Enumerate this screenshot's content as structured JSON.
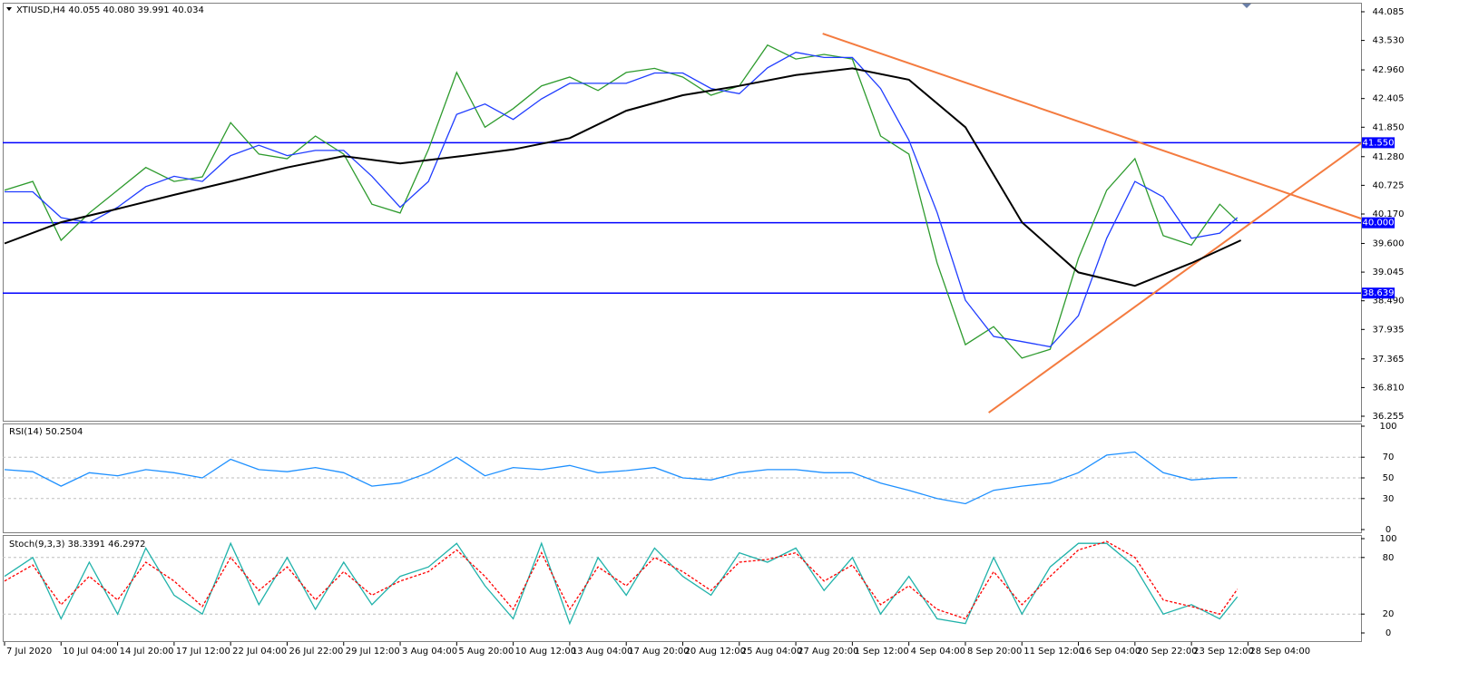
{
  "chart_data": [
    {
      "type": "line",
      "title": "XTIUSD,H4  40.055 40.080 39.991 40.034",
      "xlim": [
        0,
        384
      ],
      "ylim": [
        36.185,
        44.225
      ],
      "yticks": [
        36.255,
        {
          "value": 36.81,
          "label": "36.810"
        },
        37.365,
        37.935,
        {
          "value": 38.49,
          "label": "38.490"
        },
        39.045,
        {
          "value": 39.6,
          "label": "39.600"
        },
        {
          "value": 40.17,
          "label": "40.170"
        },
        40.725,
        {
          "value": 41.28,
          "label": "41.280"
        },
        {
          "value": 41.85,
          "label": "41.850"
        },
        42.405,
        {
          "value": 42.96,
          "label": "42.960"
        },
        {
          "value": 43.53,
          "label": "43.530"
        },
        44.085
      ],
      "x": [
        0,
        8,
        16,
        24,
        32,
        40,
        48,
        56,
        64,
        72,
        80,
        88,
        96,
        104,
        112,
        120,
        128,
        136,
        144,
        152,
        160,
        168,
        176,
        184,
        192,
        200,
        208,
        216,
        224,
        232,
        240,
        248,
        256,
        264,
        272,
        280,
        288,
        296,
        304,
        312,
        320,
        328,
        336,
        344,
        349
      ],
      "series": [
        {
          "color": "#2e9b2e",
          "values": [
            40.63,
            40.8,
            39.66,
            40.19,
            40.63,
            41.07,
            40.8,
            40.89,
            41.94,
            41.33,
            41.24,
            41.68,
            41.33,
            40.36,
            40.19,
            41.42,
            42.91,
            41.85,
            42.21,
            42.65,
            42.82,
            42.56,
            42.91,
            42.99,
            42.82,
            42.47,
            42.65,
            43.44,
            43.17,
            43.26,
            43.17,
            41.68,
            41.33,
            39.22,
            37.64,
            37.99,
            37.38,
            37.55,
            39.31,
            40.63,
            41.24,
            39.75,
            39.57,
            40.36,
            40.034
          ]
        },
        {
          "color": "#1f3cff",
          "values": [
            40.6,
            40.6,
            40.1,
            40.0,
            40.3,
            40.7,
            40.9,
            40.8,
            41.3,
            41.5,
            41.3,
            41.4,
            41.4,
            40.9,
            40.3,
            40.8,
            42.1,
            42.3,
            42.0,
            42.4,
            42.7,
            42.7,
            42.7,
            42.9,
            42.9,
            42.6,
            42.5,
            43.0,
            43.3,
            43.2,
            43.2,
            42.6,
            41.6,
            40.2,
            38.5,
            37.8,
            37.7,
            37.6,
            38.2,
            39.7,
            40.8,
            40.5,
            39.7,
            39.8,
            40.1
          ]
        },
        {
          "color": "#000000",
          "x": [
            0,
            16,
            32,
            48,
            64,
            80,
            96,
            112,
            128,
            144,
            160,
            176,
            192,
            208,
            224,
            240,
            256,
            272,
            288,
            304,
            320,
            336,
            350
          ],
          "values": [
            39.6,
            40.01,
            40.27,
            40.54,
            40.8,
            41.07,
            41.29,
            41.15,
            41.28,
            41.42,
            41.64,
            42.17,
            42.47,
            42.65,
            42.86,
            42.99,
            42.77,
            41.85,
            40.01,
            39.04,
            38.78,
            39.22,
            39.66
          ]
        }
      ],
      "levels": [
        {
          "value": 41.55,
          "label": "41.550"
        },
        {
          "value": 40,
          "label": "40.000"
        },
        38.639
      ],
      "level_color": "#0000ff",
      "trendlines": [
        {
          "x": [
            231.6,
            384
          ],
          "y": [
            43.663,
            40.082
          ]
        },
        {
          "x": [
            278.6,
            384
          ],
          "y": [
            36.325,
            41.539
          ]
        }
      ],
      "trendline_color": "#f47b3f"
    },
    {
      "type": "line",
      "title": "RSI(14) 50.2504",
      "xlim": [
        0,
        384
      ],
      "ylim": [
        0,
        100
      ],
      "yticks": [
        0,
        30,
        50,
        70,
        100
      ],
      "levels": [
        30,
        50,
        70
      ],
      "level_color": "#bdbdbd",
      "level_dash": true,
      "x": [
        0,
        8,
        16,
        24,
        32,
        40,
        48,
        56,
        64,
        72,
        80,
        88,
        96,
        104,
        112,
        120,
        128,
        136,
        144,
        152,
        160,
        168,
        176,
        184,
        192,
        200,
        208,
        216,
        224,
        232,
        240,
        248,
        256,
        264,
        272,
        280,
        288,
        296,
        304,
        312,
        320,
        328,
        336,
        344,
        349
      ],
      "series": [
        {
          "color": "#1e90ff",
          "values": [
            58,
            56,
            42,
            55,
            52,
            58,
            55,
            50,
            68,
            58,
            56,
            60,
            55,
            42,
            45,
            55,
            70,
            52,
            60,
            58,
            62,
            55,
            57,
            60,
            50,
            48,
            55,
            58,
            58,
            55,
            55,
            45,
            38,
            30,
            25,
            38,
            42,
            45,
            55,
            72,
            75,
            55,
            48,
            50,
            50.25
          ]
        }
      ]
    },
    {
      "type": "line",
      "title": "Stoch(9,3,3) 38.3391 46.2972",
      "xlim": [
        0,
        384
      ],
      "ylim": [
        0,
        100
      ],
      "yticks": [
        0,
        20,
        80,
        100
      ],
      "levels": [
        20,
        80
      ],
      "level_color": "#bdbdbd",
      "level_dash": true,
      "xticks": [
        {
          "value": 0,
          "label": "7 Jul 2020"
        },
        {
          "value": 16,
          "label": "10 Jul 04:00"
        },
        {
          "value": 32,
          "label": "14 Jul 20:00"
        },
        {
          "value": 48,
          "label": "17 Jul 12:00"
        },
        {
          "value": 64,
          "label": "22 Jul 04:00"
        },
        {
          "value": 80,
          "label": "26 Jul 22:00"
        },
        {
          "value": 96,
          "label": "29 Jul 12:00"
        },
        {
          "value": 112,
          "label": "3 Aug 04:00"
        },
        {
          "value": 128,
          "label": "5 Aug 20:00"
        },
        {
          "value": 144,
          "label": "10 Aug 12:00"
        },
        {
          "value": 160,
          "label": "13 Aug 04:00"
        },
        {
          "value": 176,
          "label": "17 Aug 20:00"
        },
        {
          "value": 192,
          "label": "20 Aug 12:00"
        },
        {
          "value": 208,
          "label": "25 Aug 04:00"
        },
        {
          "value": 224,
          "label": "27 Aug 20:00"
        },
        {
          "value": 240,
          "label": "1 Sep 12:00"
        },
        {
          "value": 256,
          "label": "4 Sep 04:00"
        },
        {
          "value": 272,
          "label": "8 Sep 20:00"
        },
        {
          "value": 288,
          "label": "11 Sep 12:00"
        },
        {
          "value": 304,
          "label": "16 Sep 04:00"
        },
        {
          "value": 320,
          "label": "20 Sep 22:00"
        },
        {
          "value": 336,
          "label": "23 Sep 12:00"
        },
        {
          "value": 352,
          "label": "28 Sep 04:00"
        }
      ],
      "x": [
        0,
        8,
        16,
        24,
        32,
        40,
        48,
        56,
        64,
        72,
        80,
        88,
        96,
        104,
        112,
        120,
        128,
        136,
        144,
        152,
        160,
        168,
        176,
        184,
        192,
        200,
        208,
        216,
        224,
        232,
        240,
        248,
        256,
        264,
        272,
        280,
        288,
        296,
        304,
        312,
        320,
        328,
        336,
        344,
        349
      ],
      "series": [
        {
          "color": "#20b2aa",
          "values": [
            60,
            80,
            15,
            75,
            20,
            90,
            40,
            20,
            95,
            30,
            80,
            25,
            75,
            30,
            60,
            70,
            95,
            50,
            15,
            95,
            10,
            80,
            40,
            90,
            60,
            40,
            85,
            75,
            90,
            45,
            80,
            20,
            60,
            15,
            10,
            80,
            20,
            70,
            95,
            95,
            70,
            20,
            30,
            15,
            38.34
          ]
        },
        {
          "color": "#ff0000",
          "dash": true,
          "values": [
            55,
            72,
            30,
            60,
            35,
            75,
            55,
            28,
            80,
            45,
            70,
            35,
            65,
            40,
            55,
            65,
            88,
            60,
            25,
            85,
            25,
            70,
            50,
            80,
            65,
            45,
            75,
            78,
            85,
            55,
            72,
            30,
            50,
            25,
            15,
            65,
            30,
            60,
            88,
            97,
            80,
            35,
            28,
            20,
            46.3
          ]
        }
      ]
    }
  ]
}
